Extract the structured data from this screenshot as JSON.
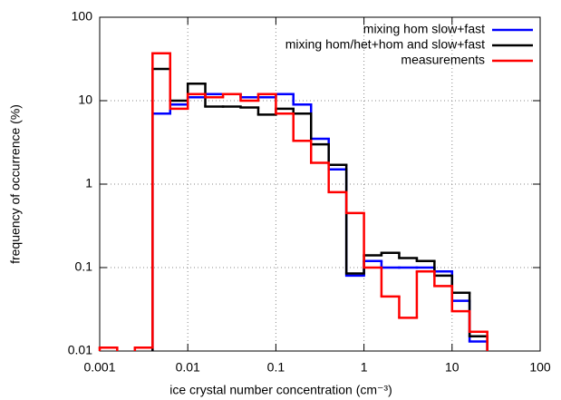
{
  "chart_data": {
    "type": "histogram",
    "xlabel": "ice crystal number concentration (cm⁻³)",
    "ylabel": "frequency of occurrence (%)",
    "bins": [
      0.001,
      0.00158,
      0.00251,
      0.00398,
      0.00631,
      0.01,
      0.0158,
      0.0251,
      0.0398,
      0.0631,
      0.1,
      0.158,
      0.251,
      0.398,
      0.631,
      1,
      1.58,
      2.51,
      3.98,
      6.31,
      10,
      15.8,
      25.1
    ],
    "series": [
      {
        "name": "mixing hom slow+fast",
        "color": "#0000ff",
        "values": [
          null,
          null,
          null,
          7,
          9,
          11,
          12,
          12,
          11,
          11,
          12,
          9,
          3.5,
          1.5,
          0.08,
          0.12,
          0.1,
          0.1,
          0.1,
          0.09,
          0.04,
          0.013
        ]
      },
      {
        "name": "mixing hom/het+hom and slow+fast",
        "color": "#000000",
        "values": [
          null,
          null,
          null,
          24,
          10,
          16,
          8.5,
          8.5,
          8.3,
          6.8,
          8,
          7,
          3,
          1.7,
          0.085,
          0.14,
          0.15,
          0.13,
          0.12,
          0.08,
          0.05,
          0.015
        ]
      },
      {
        "name": "measurements",
        "color": "#ff0000",
        "values": [
          0.011,
          null,
          0.011,
          37,
          8,
          12,
          11,
          12,
          10,
          12,
          7,
          3.3,
          1.8,
          0.8,
          0.45,
          0.1,
          0.045,
          0.025,
          0.09,
          0.06,
          0.03,
          0.017
        ]
      }
    ],
    "xlim": [
      0.001,
      100
    ],
    "xticks": [
      0.001,
      0.01,
      0.1,
      1,
      10,
      100
    ],
    "ylim": [
      0.01,
      100
    ],
    "yticks": [
      0.01,
      0.1,
      1,
      10,
      100
    ],
    "xscale": "log",
    "yscale": "log",
    "grid": true,
    "legend": "upper right"
  }
}
